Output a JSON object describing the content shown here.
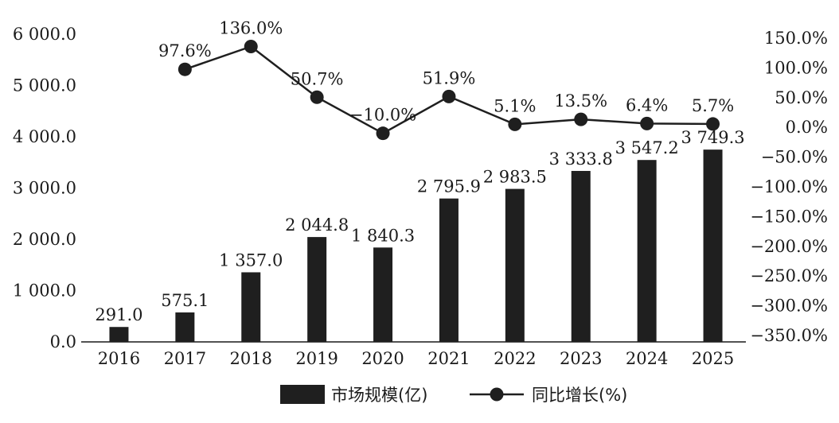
{
  "chart_data": {
    "type": "bar+line",
    "categories": [
      "2016",
      "2017",
      "2018",
      "2019",
      "2020",
      "2021",
      "2022",
      "2023",
      "2024",
      "2025"
    ],
    "series": [
      {
        "name": "市场规模(亿)",
        "type": "bar",
        "axis": "left",
        "values": [
          291.0,
          575.1,
          1357.0,
          2044.8,
          1840.3,
          2795.9,
          2983.5,
          3333.8,
          3547.2,
          3749.3
        ],
        "labels": [
          "291.0",
          "575.1",
          "1 357.0",
          "2 044.8",
          "1 840.3",
          "2 795.9",
          "2 983.5",
          "3 333.8",
          "3 547.2",
          "3 749.3"
        ]
      },
      {
        "name": "同比增长(%)",
        "type": "line",
        "axis": "right",
        "values": [
          null,
          97.6,
          136.0,
          50.7,
          -10.0,
          51.9,
          5.1,
          13.5,
          6.4,
          5.7
        ],
        "labels": [
          "",
          "97.6%",
          "136.0%",
          "50.7%",
          "−10.0%",
          "51.9%",
          "5.1%",
          "13.5%",
          "6.4%",
          "5.7%"
        ]
      }
    ],
    "y_left": {
      "ylim": [
        0,
        6000
      ],
      "ticks": [
        "0.0",
        "1 000.0",
        "2 000.0",
        "3 000.0",
        "4 000.0",
        "5 000.0",
        "6 000.0"
      ]
    },
    "y_right": {
      "ylim": [
        -350,
        150
      ],
      "ticks": [
        "−350.0%",
        "−300.0%",
        "−250.0%",
        "−200.0%",
        "−150.0%",
        "−100.0%",
        "−50.0%",
        "0.0%",
        "50.0%",
        "100.0%",
        "150.0%"
      ]
    },
    "grid": false,
    "legend": "bottom-center",
    "colors": {
      "bar": "#1f1f1f",
      "line": "#1f1f1f"
    }
  }
}
